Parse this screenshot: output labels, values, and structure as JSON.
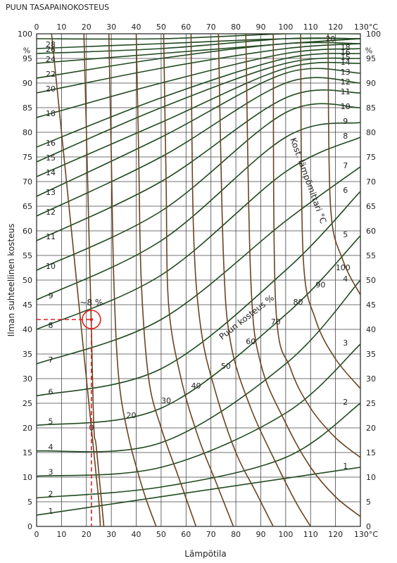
{
  "chart_data": {
    "type": "line",
    "title": "PUUN TASAPAINOKOSTEUS",
    "xlabel": "Lämpötila",
    "ylabel": "Ilman suhteellinen kosteus",
    "x_ticks": [
      "0",
      "10",
      "20",
      "30",
      "40",
      "50",
      "60",
      "70",
      "80",
      "90",
      "100",
      "110",
      "120",
      "130°C"
    ],
    "y_ticks": [
      "0",
      "5",
      "10",
      "15",
      "20",
      "25",
      "30",
      "35",
      "40",
      "45",
      "50",
      "55",
      "60",
      "65",
      "70",
      "75",
      "80",
      "85",
      "90",
      "95",
      "100"
    ],
    "y_unit": "%",
    "xlim": [
      0,
      130
    ],
    "ylim": [
      0,
      100
    ],
    "grid": true,
    "equilibrium_moisture_series": [
      {
        "name": "1",
        "values": [
          [
            0,
            2.3
          ],
          [
            130,
            12
          ]
        ]
      },
      {
        "name": "2",
        "values": [
          [
            0,
            5.8
          ],
          [
            50,
            8
          ],
          [
            100,
            14
          ],
          [
            130,
            25
          ]
        ]
      },
      {
        "name": "3",
        "values": [
          [
            0,
            10.2
          ],
          [
            50,
            12
          ],
          [
            100,
            23
          ],
          [
            130,
            37
          ]
        ]
      },
      {
        "name": "4",
        "values": [
          [
            0,
            15.3
          ],
          [
            50,
            17
          ],
          [
            100,
            33
          ],
          [
            130,
            50
          ]
        ]
      },
      {
        "name": "5",
        "values": [
          [
            0,
            20.5
          ],
          [
            50,
            24
          ],
          [
            100,
            43
          ],
          [
            130,
            59
          ]
        ]
      },
      {
        "name": "6",
        "values": [
          [
            0,
            26.5
          ],
          [
            50,
            32
          ],
          [
            100,
            52
          ],
          [
            130,
            68
          ]
        ]
      },
      {
        "name": "7",
        "values": [
          [
            0,
            33
          ],
          [
            50,
            42
          ],
          [
            100,
            62
          ],
          [
            130,
            73
          ]
        ]
      },
      {
        "name": "8",
        "values": [
          [
            0,
            40
          ],
          [
            50,
            51
          ],
          [
            100,
            72
          ],
          [
            130,
            79
          ]
        ]
      },
      {
        "name": "9",
        "values": [
          [
            0,
            46
          ],
          [
            50,
            58
          ],
          [
            100,
            79
          ],
          [
            130,
            82
          ]
        ]
      },
      {
        "name": "10",
        "values": [
          [
            0,
            52
          ],
          [
            50,
            64
          ],
          [
            100,
            84
          ],
          [
            130,
            85
          ]
        ]
      },
      {
        "name": "11",
        "values": [
          [
            0,
            58
          ],
          [
            50,
            70
          ],
          [
            100,
            87
          ],
          [
            130,
            88
          ]
        ]
      },
      {
        "name": "12",
        "values": [
          [
            0,
            63
          ],
          [
            50,
            75
          ],
          [
            100,
            90
          ],
          [
            130,
            90
          ]
        ]
      },
      {
        "name": "13",
        "values": [
          [
            0,
            67
          ],
          [
            50,
            79
          ],
          [
            100,
            92
          ],
          [
            130,
            92
          ]
        ]
      },
      {
        "name": "14",
        "values": [
          [
            0,
            71
          ],
          [
            50,
            82
          ],
          [
            100,
            93
          ],
          [
            130,
            94
          ]
        ]
      },
      {
        "name": "15",
        "values": [
          [
            0,
            74
          ],
          [
            50,
            85
          ],
          [
            100,
            94
          ],
          [
            130,
            95
          ]
        ]
      },
      {
        "name": "16",
        "values": [
          [
            0,
            77
          ],
          [
            50,
            87
          ],
          [
            100,
            95
          ],
          [
            130,
            96
          ]
        ]
      },
      {
        "name": "18",
        "values": [
          [
            0,
            83
          ],
          [
            50,
            90
          ],
          [
            100,
            96
          ],
          [
            130,
            97
          ]
        ]
      },
      {
        "name": "20",
        "values": [
          [
            0,
            88
          ],
          [
            50,
            93
          ],
          [
            100,
            97
          ],
          [
            130,
            98
          ]
        ]
      },
      {
        "name": "22",
        "values": [
          [
            0,
            91
          ],
          [
            50,
            95
          ],
          [
            100,
            98
          ],
          [
            130,
            98
          ]
        ]
      },
      {
        "name": "24",
        "values": [
          [
            0,
            94
          ],
          [
            50,
            96
          ],
          [
            100,
            98
          ],
          [
            130,
            99
          ]
        ]
      },
      {
        "name": "26",
        "values": [
          [
            0,
            96
          ],
          [
            50,
            97
          ],
          [
            100,
            99
          ],
          [
            130,
            99
          ]
        ]
      },
      {
        "name": "28",
        "values": [
          [
            0,
            97
          ],
          [
            50,
            98
          ],
          [
            100,
            99
          ],
          [
            130,
            99
          ]
        ]
      },
      {
        "name": "30",
        "values": [
          [
            0,
            99
          ],
          [
            50,
            99
          ],
          [
            100,
            100
          ],
          [
            130,
            100
          ]
        ]
      }
    ],
    "wet_bulb_series": [
      {
        "name": "0",
        "values": [
          [
            25.6,
            0
          ],
          [
            25,
            5
          ],
          [
            24,
            10
          ],
          [
            23,
            15
          ],
          [
            22,
            20
          ],
          [
            21,
            25
          ],
          [
            20,
            30
          ],
          [
            19,
            35
          ],
          [
            18,
            40
          ],
          [
            17,
            45
          ],
          [
            16,
            50
          ],
          [
            15,
            55
          ],
          [
            14,
            60
          ],
          [
            13,
            65
          ],
          [
            12,
            70
          ],
          [
            11,
            75
          ],
          [
            10,
            80
          ],
          [
            9,
            85
          ],
          [
            8,
            90
          ],
          [
            7,
            95
          ],
          [
            6,
            100
          ]
        ]
      },
      {
        "name": "10",
        "values": [
          [
            27,
            0
          ],
          [
            24,
            16
          ],
          [
            23,
            20
          ],
          [
            22,
            40
          ],
          [
            21,
            60
          ],
          [
            20,
            80
          ],
          [
            19,
            100
          ]
        ]
      },
      {
        "name": "20",
        "values": [
          [
            48,
            0
          ],
          [
            43,
            7
          ],
          [
            37,
            18
          ],
          [
            33,
            30
          ],
          [
            31,
            50
          ],
          [
            30,
            75
          ],
          [
            29,
            100
          ]
        ]
      },
      {
        "name": "30",
        "values": [
          [
            64,
            0
          ],
          [
            57,
            10
          ],
          [
            50,
            20
          ],
          [
            45,
            30
          ],
          [
            42,
            50
          ],
          [
            41,
            75
          ],
          [
            40,
            100
          ]
        ]
      },
      {
        "name": "40",
        "values": [
          [
            79,
            0
          ],
          [
            72,
            9
          ],
          [
            65,
            18
          ],
          [
            58,
            30
          ],
          [
            53,
            45
          ],
          [
            52,
            70
          ],
          [
            51,
            100
          ]
        ]
      },
      {
        "name": "50",
        "values": [
          [
            95,
            0
          ],
          [
            88,
            7
          ],
          [
            80,
            15
          ],
          [
            72,
            27
          ],
          [
            66,
            40
          ],
          [
            63,
            60
          ],
          [
            62,
            100
          ]
        ]
      },
      {
        "name": "60",
        "values": [
          [
            110,
            0
          ],
          [
            104,
            5
          ],
          [
            96,
            13
          ],
          [
            86,
            24
          ],
          [
            78,
            37
          ],
          [
            75,
            55
          ],
          [
            73,
            100
          ]
        ]
      },
      {
        "name": "70",
        "values": [
          [
            130,
            2
          ],
          [
            120,
            6
          ],
          [
            110,
            12
          ],
          [
            100,
            21
          ],
          [
            90,
            33
          ],
          [
            86,
            50
          ],
          [
            84,
            100
          ]
        ]
      },
      {
        "name": "80",
        "values": [
          [
            130,
            14
          ],
          [
            120,
            18
          ],
          [
            110,
            24
          ],
          [
            102,
            32
          ],
          [
            96,
            45
          ],
          [
            95,
            100
          ]
        ]
      },
      {
        "name": "90",
        "values": [
          [
            130,
            28
          ],
          [
            120,
            34
          ],
          [
            112,
            42
          ],
          [
            107,
            55
          ],
          [
            106,
            100
          ]
        ]
      },
      {
        "name": "100",
        "values": [
          [
            130,
            47
          ],
          [
            123,
            54
          ],
          [
            118,
            65
          ],
          [
            117,
            100
          ]
        ]
      }
    ],
    "point_marker": {
      "x": 22,
      "y": 42,
      "label": "~8 %"
    },
    "annotations": [
      "Puun kosteus %",
      "Kost. lämpömittari °C"
    ]
  }
}
